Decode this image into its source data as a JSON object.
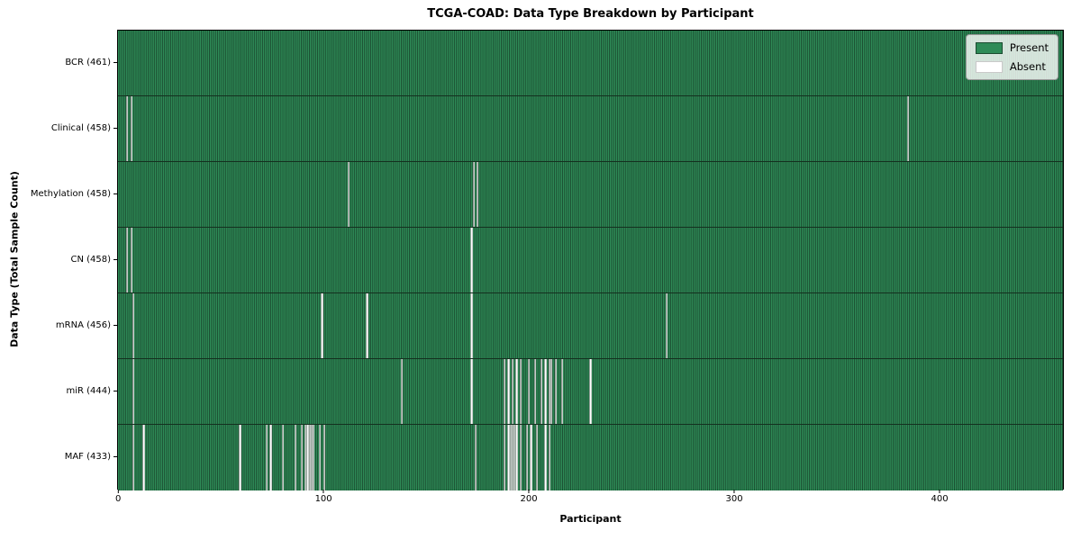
{
  "title": "TCGA-COAD: Data Type Breakdown by Participant",
  "legend": {
    "present_label": "Present",
    "absent_label": "Absent"
  },
  "colors": {
    "present": "#2e8b57",
    "present_edge": "#1b4c30",
    "absent": "#ffffff",
    "legend_background": "#e7ece7"
  },
  "chart_data": {
    "type": "heatmap",
    "title": "TCGA-COAD: Data Type Breakdown by Participant",
    "xlabel": "Participant",
    "ylabel": "Data Type (Total Sample Count)",
    "x_ticks": [
      0,
      100,
      200,
      300,
      400
    ],
    "xlim": [
      -0.5,
      460.5
    ],
    "grid": false,
    "legend_position": "upper right",
    "legend_labels": [
      "Present",
      "Absent"
    ],
    "total_participants": 461,
    "value_encoding": {
      "present": "seagreen cell",
      "absent": "white cell"
    },
    "rows": [
      {
        "name": "BCR",
        "label": "BCR (461)",
        "present_count": 461,
        "absent_participants": []
      },
      {
        "name": "Clinical",
        "label": "Clinical (458)",
        "present_count": 458,
        "absent_participants": [
          4,
          6,
          385
        ]
      },
      {
        "name": "Methylation",
        "label": "Methylation (458)",
        "present_count": 458,
        "absent_participants": [
          112,
          173,
          175
        ]
      },
      {
        "name": "CN",
        "label": "CN (458)",
        "present_count": 458,
        "absent_participants": [
          4,
          6,
          172
        ]
      },
      {
        "name": "mRNA",
        "label": "mRNA (456)",
        "present_count": 456,
        "absent_participants": [
          7,
          99,
          121,
          172,
          267
        ]
      },
      {
        "name": "miR",
        "label": "miR (444)",
        "present_count": 444,
        "absent_participants": [
          7,
          138,
          172,
          188,
          190,
          192,
          194,
          196,
          200,
          203,
          206,
          208,
          210,
          211,
          213,
          216,
          230
        ]
      },
      {
        "name": "MAF",
        "label": "MAF (433)",
        "present_count": 433,
        "absent_participants": [
          7,
          12,
          59,
          72,
          74,
          80,
          86,
          89,
          91,
          92,
          93,
          94,
          95,
          98,
          100,
          174,
          188,
          190,
          191,
          192,
          193,
          194,
          196,
          199,
          201,
          204,
          208,
          210
        ]
      }
    ]
  }
}
